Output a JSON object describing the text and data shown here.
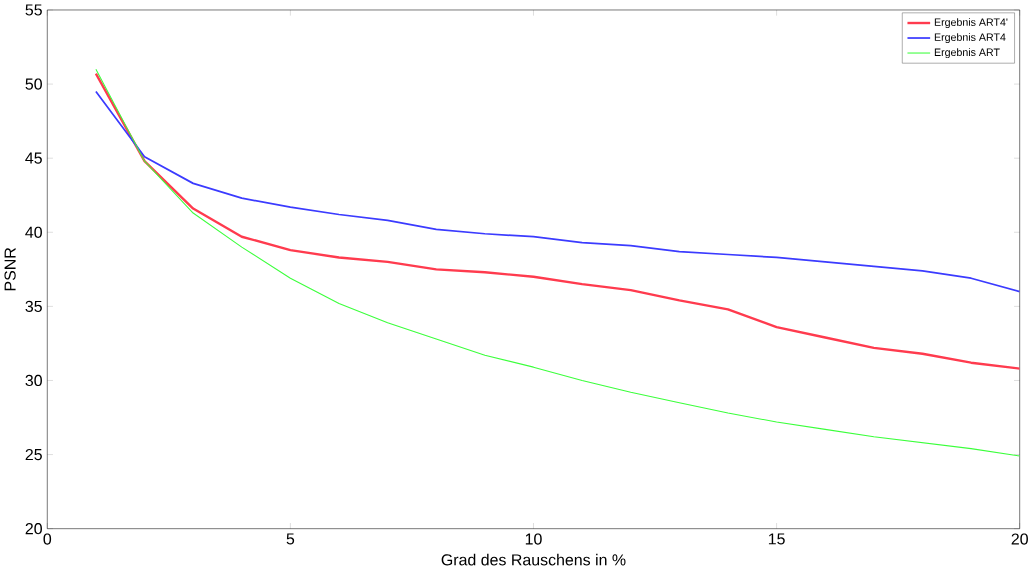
{
  "chart_data": {
    "type": "line",
    "xlabel": "Grad des Rauschens in %",
    "ylabel": "PSNR",
    "x": [
      1,
      2,
      3,
      4,
      5,
      6,
      7,
      8,
      9,
      10,
      11,
      12,
      13,
      14,
      15,
      16,
      17,
      18,
      19,
      20
    ],
    "series": [
      {
        "name": "Ergebnis ART4'",
        "color": "#ff3b4e",
        "values": [
          50.7,
          44.8,
          41.6,
          39.7,
          38.8,
          38.3,
          38.0,
          37.5,
          37.3,
          37.0,
          36.5,
          36.1,
          35.4,
          34.8,
          33.6,
          32.9,
          32.2,
          31.8,
          31.2,
          30.8
        ]
      },
      {
        "name": "Ergebnis ART4",
        "color": "#3b3bff",
        "values": [
          49.5,
          45.1,
          43.3,
          42.3,
          41.7,
          41.2,
          40.8,
          40.2,
          39.9,
          39.7,
          39.3,
          39.1,
          38.7,
          38.5,
          38.3,
          38.0,
          37.7,
          37.4,
          36.9,
          36.0
        ]
      },
      {
        "name": "Ergebnis ART",
        "color": "#3bff3b",
        "values": [
          51.0,
          44.8,
          41.3,
          39.0,
          36.9,
          35.2,
          33.9,
          32.8,
          31.7,
          30.9,
          30.0,
          29.2,
          28.5,
          27.8,
          27.2,
          26.7,
          26.2,
          25.8,
          25.4,
          24.9
        ]
      }
    ],
    "xlim": [
      0,
      20
    ],
    "ylim": [
      20,
      55
    ],
    "xticks": [
      0,
      5,
      10,
      15,
      20
    ],
    "yticks": [
      20,
      25,
      30,
      35,
      40,
      45,
      50,
      55
    ],
    "legend": "top right",
    "grid": false,
    "marker": "none",
    "line_style": "solid"
  }
}
